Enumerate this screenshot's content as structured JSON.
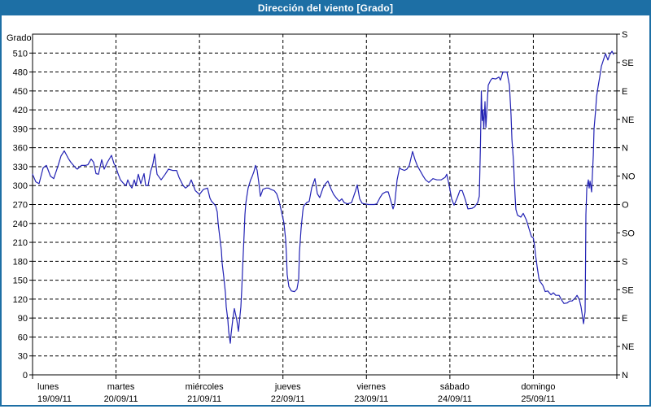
{
  "header": {
    "title": "Dirección del viento [Grado]"
  },
  "chart_data": {
    "type": "line",
    "title": "Dirección del viento [Grado]",
    "y_axis_left_label": "Grado",
    "line_color": "#2222b4",
    "frame_color": "#1d6fa5",
    "grid_color": "#000000",
    "ylim": [
      0,
      540
    ],
    "xlim_days": [
      0,
      7
    ],
    "grid": "dashed",
    "y_left_ticks": [
      0,
      30,
      60,
      90,
      120,
      150,
      180,
      210,
      240,
      270,
      300,
      330,
      360,
      390,
      420,
      450,
      480,
      510
    ],
    "y_right_ticks": [
      {
        "value": 0,
        "label": "N"
      },
      {
        "value": 45,
        "label": "NE"
      },
      {
        "value": 90,
        "label": "E"
      },
      {
        "value": 135,
        "label": "SE"
      },
      {
        "value": 180,
        "label": "S"
      },
      {
        "value": 225,
        "label": "SO"
      },
      {
        "value": 270,
        "label": "O"
      },
      {
        "value": 315,
        "label": "NO"
      },
      {
        "value": 360,
        "label": "N"
      },
      {
        "value": 405,
        "label": "NE"
      },
      {
        "value": 450,
        "label": "E"
      },
      {
        "value": 495,
        "label": "SE"
      },
      {
        "value": 540,
        "label": "S"
      }
    ],
    "x_day_labels": [
      {
        "name": "lunes",
        "date": "19/09/11"
      },
      {
        "name": "martes",
        "date": "20/09/11"
      },
      {
        "name": "miércoles",
        "date": "21/09/11"
      },
      {
        "name": "jueves",
        "date": "22/09/11"
      },
      {
        "name": "viernes",
        "date": "23/09/11"
      },
      {
        "name": "sábado",
        "date": "24/09/11"
      },
      {
        "name": "domingo",
        "date": "25/09/11"
      }
    ],
    "series": [
      {
        "name": "Dirección del viento",
        "points": [
          [
            0.0,
            318
          ],
          [
            0.039,
            306
          ],
          [
            0.078,
            303
          ],
          [
            0.127,
            328
          ],
          [
            0.166,
            332
          ],
          [
            0.214,
            315
          ],
          [
            0.253,
            311
          ],
          [
            0.302,
            330
          ],
          [
            0.341,
            347
          ],
          [
            0.38,
            355
          ],
          [
            0.429,
            343
          ],
          [
            0.458,
            337
          ],
          [
            0.517,
            328
          ],
          [
            0.536,
            326
          ],
          [
            0.585,
            332
          ],
          [
            0.634,
            332
          ],
          [
            0.663,
            333
          ],
          [
            0.702,
            342
          ],
          [
            0.731,
            337
          ],
          [
            0.76,
            319
          ],
          [
            0.79,
            318
          ],
          [
            0.829,
            341
          ],
          [
            0.858,
            326
          ],
          [
            0.897,
            337
          ],
          [
            0.946,
            348
          ],
          [
            0.975,
            335
          ],
          [
            0.994,
            331
          ],
          [
            1.024,
            319
          ],
          [
            1.053,
            309
          ],
          [
            1.092,
            303
          ],
          [
            1.121,
            300
          ],
          [
            1.141,
            309
          ],
          [
            1.17,
            300
          ],
          [
            1.19,
            296
          ],
          [
            1.219,
            309
          ],
          [
            1.238,
            300
          ],
          [
            1.267,
            318
          ],
          [
            1.297,
            303
          ],
          [
            1.336,
            319
          ],
          [
            1.355,
            300
          ],
          [
            1.384,
            300
          ],
          [
            1.414,
            322
          ],
          [
            1.443,
            335
          ],
          [
            1.462,
            350
          ],
          [
            1.492,
            318
          ],
          [
            1.54,
            309
          ],
          [
            1.589,
            318
          ],
          [
            1.628,
            326
          ],
          [
            1.677,
            324
          ],
          [
            1.726,
            324
          ],
          [
            1.755,
            313
          ],
          [
            1.804,
            300
          ],
          [
            1.833,
            296
          ],
          [
            1.872,
            300
          ],
          [
            1.901,
            309
          ],
          [
            1.95,
            292
          ],
          [
            2.0,
            286
          ],
          [
            2.047,
            294
          ],
          [
            2.096,
            296
          ],
          [
            2.125,
            280
          ],
          [
            2.145,
            275
          ],
          [
            2.174,
            271
          ],
          [
            2.194,
            268
          ],
          [
            2.213,
            258
          ],
          [
            2.223,
            241
          ],
          [
            2.242,
            219
          ],
          [
            2.262,
            198
          ],
          [
            2.272,
            177
          ],
          [
            2.291,
            155
          ],
          [
            2.311,
            130
          ],
          [
            2.32,
            108
          ],
          [
            2.34,
            87
          ],
          [
            2.35,
            69
          ],
          [
            2.369,
            50
          ],
          [
            2.379,
            65
          ],
          [
            2.398,
            87
          ],
          [
            2.418,
            105
          ],
          [
            2.447,
            87
          ],
          [
            2.467,
            69
          ],
          [
            2.476,
            82
          ],
          [
            2.496,
            108
          ],
          [
            2.506,
            133
          ],
          [
            2.515,
            164
          ],
          [
            2.525,
            194
          ],
          [
            2.535,
            223
          ],
          [
            2.545,
            254
          ],
          [
            2.554,
            271
          ],
          [
            2.564,
            280
          ],
          [
            2.583,
            296
          ],
          [
            2.613,
            309
          ],
          [
            2.632,
            315
          ],
          [
            2.652,
            322
          ],
          [
            2.671,
            332
          ],
          [
            2.691,
            324
          ],
          [
            2.71,
            305
          ],
          [
            2.73,
            283
          ],
          [
            2.749,
            290
          ],
          [
            2.759,
            294
          ],
          [
            2.798,
            296
          ],
          [
            2.827,
            296
          ],
          [
            2.856,
            294
          ],
          [
            2.895,
            292
          ],
          [
            2.925,
            287
          ],
          [
            2.954,
            275
          ],
          [
            2.983,
            258
          ],
          [
            3.012,
            241
          ],
          [
            3.032,
            215
          ],
          [
            3.042,
            190
          ],
          [
            3.051,
            159
          ],
          [
            3.071,
            140
          ],
          [
            3.1,
            133
          ],
          [
            3.139,
            132
          ],
          [
            3.168,
            136
          ],
          [
            3.188,
            151
          ],
          [
            3.198,
            194
          ],
          [
            3.217,
            232
          ],
          [
            3.237,
            258
          ],
          [
            3.246,
            267
          ],
          [
            3.285,
            273
          ],
          [
            3.315,
            275
          ],
          [
            3.344,
            296
          ],
          [
            3.383,
            311
          ],
          [
            3.412,
            287
          ],
          [
            3.441,
            281
          ],
          [
            3.48,
            296
          ],
          [
            3.51,
            303
          ],
          [
            3.539,
            307
          ],
          [
            3.578,
            294
          ],
          [
            3.607,
            286
          ],
          [
            3.636,
            281
          ],
          [
            3.675,
            275
          ],
          [
            3.705,
            279
          ],
          [
            3.734,
            273
          ],
          [
            3.773,
            271
          ],
          [
            3.822,
            273
          ],
          [
            3.87,
            292
          ],
          [
            3.89,
            301
          ],
          [
            3.919,
            279
          ],
          [
            3.948,
            272
          ],
          [
            3.978,
            271
          ],
          [
            4.026,
            270
          ],
          [
            4.095,
            270
          ],
          [
            4.124,
            271
          ],
          [
            4.163,
            281
          ],
          [
            4.192,
            287
          ],
          [
            4.231,
            290
          ],
          [
            4.261,
            290
          ],
          [
            4.29,
            277
          ],
          [
            4.319,
            263
          ],
          [
            4.338,
            271
          ],
          [
            4.368,
            309
          ],
          [
            4.397,
            328
          ],
          [
            4.416,
            326
          ],
          [
            4.455,
            324
          ],
          [
            4.485,
            326
          ],
          [
            4.514,
            332
          ],
          [
            4.553,
            354
          ],
          [
            4.582,
            341
          ],
          [
            4.611,
            331
          ],
          [
            4.65,
            322
          ],
          [
            4.68,
            315
          ],
          [
            4.709,
            309
          ],
          [
            4.748,
            305
          ],
          [
            4.797,
            311
          ],
          [
            4.845,
            309
          ],
          [
            4.894,
            309
          ],
          [
            4.943,
            313
          ],
          [
            4.962,
            318
          ],
          [
            4.992,
            300
          ],
          [
            5.021,
            279
          ],
          [
            5.05,
            269
          ],
          [
            5.089,
            281
          ],
          [
            5.119,
            292
          ],
          [
            5.148,
            292
          ],
          [
            5.187,
            277
          ],
          [
            5.216,
            263
          ],
          [
            5.265,
            264
          ],
          [
            5.294,
            266
          ],
          [
            5.333,
            273
          ],
          [
            5.352,
            283
          ],
          [
            5.367,
            369
          ],
          [
            5.377,
            450
          ],
          [
            5.387,
            403
          ],
          [
            5.396,
            420
          ],
          [
            5.406,
            390
          ],
          [
            5.421,
            433
          ],
          [
            5.431,
            392
          ],
          [
            5.46,
            459
          ],
          [
            5.489,
            467
          ],
          [
            5.509,
            470
          ],
          [
            5.548,
            469
          ],
          [
            5.587,
            472
          ],
          [
            5.606,
            467
          ],
          [
            5.635,
            480
          ],
          [
            5.684,
            480
          ],
          [
            5.713,
            459
          ],
          [
            5.733,
            412
          ],
          [
            5.743,
            373
          ],
          [
            5.762,
            339
          ],
          [
            5.772,
            309
          ],
          [
            5.782,
            280
          ],
          [
            5.791,
            262
          ],
          [
            5.811,
            253
          ],
          [
            5.85,
            250
          ],
          [
            5.879,
            256
          ],
          [
            5.918,
            245
          ],
          [
            5.947,
            232
          ],
          [
            5.977,
            219
          ],
          [
            6.0,
            217
          ],
          [
            6.016,
            203
          ],
          [
            6.025,
            191
          ],
          [
            6.045,
            172
          ],
          [
            6.064,
            155
          ],
          [
            6.074,
            149
          ],
          [
            6.113,
            142
          ],
          [
            6.142,
            132
          ],
          [
            6.172,
            133
          ],
          [
            6.211,
            127
          ],
          [
            6.24,
            130
          ],
          [
            6.269,
            126
          ],
          [
            6.308,
            126
          ],
          [
            6.337,
            119
          ],
          [
            6.367,
            113
          ],
          [
            6.406,
            114
          ],
          [
            6.435,
            117
          ],
          [
            6.464,
            117
          ],
          [
            6.503,
            122
          ],
          [
            6.523,
            126
          ],
          [
            6.552,
            119
          ],
          [
            6.571,
            108
          ],
          [
            6.591,
            91
          ],
          [
            6.601,
            81
          ],
          [
            6.62,
            100
          ],
          [
            6.625,
            168
          ],
          [
            6.63,
            254
          ],
          [
            6.64,
            296
          ],
          [
            6.659,
            309
          ],
          [
            6.669,
            296
          ],
          [
            6.679,
            307
          ],
          [
            6.698,
            290
          ],
          [
            6.718,
            348
          ],
          [
            6.727,
            390
          ],
          [
            6.747,
            420
          ],
          [
            6.757,
            441
          ],
          [
            6.776,
            457
          ],
          [
            6.796,
            473
          ],
          [
            6.815,
            489
          ],
          [
            6.844,
            501
          ],
          [
            6.864,
            509
          ],
          [
            6.893,
            499
          ],
          [
            6.913,
            507
          ],
          [
            6.942,
            513
          ],
          [
            6.961,
            508
          ]
        ]
      }
    ]
  }
}
